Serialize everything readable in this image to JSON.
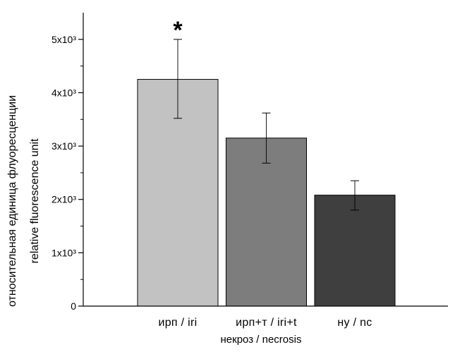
{
  "chart_data": {
    "type": "bar",
    "title": "",
    "ylabel_line1": "относительная единица флуоресценции",
    "ylabel_line2": "relative fluorescence unit",
    "xlabel": "некроз /  necrosis",
    "categories": [
      "ирп / iri",
      "ирп+т / iri+t",
      "ну / nc"
    ],
    "values": [
      4250,
      3150,
      2080
    ],
    "errors_upper": [
      5000,
      3620,
      2350
    ],
    "errors_lower": [
      3520,
      2680,
      1800
    ],
    "bar_colors": [
      "#c2c2c2",
      "#7d7d7d",
      "#3f3f3f"
    ],
    "significance": [
      "*",
      "",
      ""
    ],
    "ylim": [
      0,
      5500
    ],
    "yticks": [
      0,
      1000,
      2000,
      3000,
      4000,
      5000
    ],
    "ytick_labels": [
      "0",
      "1x10³",
      "2x10³",
      "3x10³",
      "4x10³",
      "5x10³"
    ],
    "grid": false,
    "legend": "none"
  }
}
